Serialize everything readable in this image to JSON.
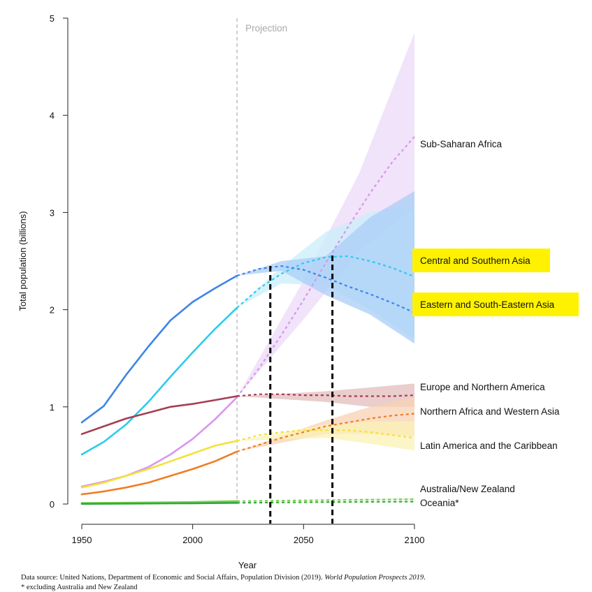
{
  "chart_data": {
    "type": "line",
    "xlabel": "Year",
    "ylabel": "Total population (billions)",
    "xlim": [
      1950,
      2100
    ],
    "ylim": [
      0,
      5
    ],
    "x_ticks": [
      "1950",
      "2000",
      "2050",
      "2100"
    ],
    "y_ticks": [
      "0",
      "1",
      "2",
      "3",
      "4",
      "5"
    ],
    "projection_label": "Projection",
    "projection_start": 2020,
    "marker_years": [
      2035,
      2063
    ],
    "series": [
      {
        "name": "Sub-Saharan Africa",
        "color": "#d896ee",
        "band_color": "#ecd9f7",
        "history": [
          [
            1950,
            0.18
          ],
          [
            1960,
            0.23
          ],
          [
            1970,
            0.29
          ],
          [
            1980,
            0.38
          ],
          [
            1990,
            0.51
          ],
          [
            2000,
            0.67
          ],
          [
            2010,
            0.87
          ],
          [
            2020,
            1.1
          ]
        ],
        "projection": [
          [
            2020,
            1.1
          ],
          [
            2030,
            1.4
          ],
          [
            2040,
            1.74
          ],
          [
            2050,
            2.1
          ],
          [
            2060,
            2.48
          ],
          [
            2070,
            2.85
          ],
          [
            2080,
            3.2
          ],
          [
            2090,
            3.52
          ],
          [
            2100,
            3.78
          ]
        ],
        "band_lower": [
          [
            2020,
            1.1
          ],
          [
            2050,
            1.9
          ],
          [
            2075,
            2.6
          ],
          [
            2100,
            3.05
          ]
        ],
        "band_upper": [
          [
            2020,
            1.1
          ],
          [
            2050,
            2.3
          ],
          [
            2075,
            3.4
          ],
          [
            2100,
            4.85
          ]
        ]
      },
      {
        "name": "Central and Southern Asia",
        "color": "#2ccbef",
        "band_color": "#c9eef9",
        "highlight": "#fff200",
        "history": [
          [
            1950,
            0.51
          ],
          [
            1960,
            0.64
          ],
          [
            1970,
            0.82
          ],
          [
            1980,
            1.05
          ],
          [
            1990,
            1.31
          ],
          [
            2000,
            1.56
          ],
          [
            2010,
            1.8
          ],
          [
            2020,
            2.02
          ]
        ],
        "projection": [
          [
            2020,
            2.02
          ],
          [
            2030,
            2.22
          ],
          [
            2040,
            2.37
          ],
          [
            2050,
            2.48
          ],
          [
            2060,
            2.54
          ],
          [
            2070,
            2.55
          ],
          [
            2080,
            2.5
          ],
          [
            2090,
            2.43
          ],
          [
            2100,
            2.34
          ]
        ],
        "band_lower": [
          [
            2020,
            2.02
          ],
          [
            2040,
            2.27
          ],
          [
            2060,
            2.25
          ],
          [
            2080,
            2.0
          ],
          [
            2100,
            1.7
          ]
        ],
        "band_upper": [
          [
            2020,
            2.02
          ],
          [
            2040,
            2.44
          ],
          [
            2060,
            2.8
          ],
          [
            2080,
            3.0
          ],
          [
            2100,
            3.08
          ]
        ]
      },
      {
        "name": "Eastern and South-Eastern Asia",
        "color": "#3d85e8",
        "band_color": "#a9cdf7",
        "highlight": "#fff200",
        "history": [
          [
            1950,
            0.84
          ],
          [
            1960,
            1.01
          ],
          [
            1970,
            1.33
          ],
          [
            1980,
            1.62
          ],
          [
            1990,
            1.89
          ],
          [
            2000,
            2.08
          ],
          [
            2010,
            2.22
          ],
          [
            2020,
            2.35
          ]
        ],
        "projection": [
          [
            2020,
            2.35
          ],
          [
            2030,
            2.42
          ],
          [
            2040,
            2.45
          ],
          [
            2050,
            2.41
          ],
          [
            2060,
            2.33
          ],
          [
            2070,
            2.24
          ],
          [
            2080,
            2.16
          ],
          [
            2090,
            2.07
          ],
          [
            2100,
            1.97
          ]
        ],
        "band_lower": [
          [
            2020,
            2.35
          ],
          [
            2040,
            2.4
          ],
          [
            2060,
            2.15
          ],
          [
            2080,
            1.95
          ],
          [
            2100,
            1.65
          ]
        ],
        "band_upper": [
          [
            2020,
            2.35
          ],
          [
            2040,
            2.5
          ],
          [
            2060,
            2.55
          ],
          [
            2080,
            2.95
          ],
          [
            2100,
            3.22
          ]
        ]
      },
      {
        "name": "Europe and Northern America",
        "color": "#a83d52",
        "band_color": "#e3bcbc",
        "history": [
          [
            1950,
            0.72
          ],
          [
            1960,
            0.8
          ],
          [
            1970,
            0.88
          ],
          [
            1980,
            0.94
          ],
          [
            1990,
            1.0
          ],
          [
            2000,
            1.03
          ],
          [
            2010,
            1.07
          ],
          [
            2020,
            1.11
          ]
        ],
        "projection": [
          [
            2020,
            1.11
          ],
          [
            2030,
            1.13
          ],
          [
            2040,
            1.13
          ],
          [
            2050,
            1.12
          ],
          [
            2060,
            1.12
          ],
          [
            2070,
            1.11
          ],
          [
            2080,
            1.11
          ],
          [
            2090,
            1.11
          ],
          [
            2100,
            1.12
          ]
        ],
        "band_lower": [
          [
            2020,
            1.11
          ],
          [
            2060,
            1.05
          ],
          [
            2080,
            1.0
          ],
          [
            2100,
            1.0
          ]
        ],
        "band_upper": [
          [
            2020,
            1.11
          ],
          [
            2060,
            1.16
          ],
          [
            2080,
            1.2
          ],
          [
            2100,
            1.24
          ]
        ]
      },
      {
        "name": "Northern Africa and Western Asia",
        "color": "#f07d23",
        "band_color": "#f8d2b3",
        "history": [
          [
            1950,
            0.1
          ],
          [
            1960,
            0.13
          ],
          [
            1970,
            0.17
          ],
          [
            1980,
            0.22
          ],
          [
            1990,
            0.29
          ],
          [
            2000,
            0.36
          ],
          [
            2010,
            0.44
          ],
          [
            2020,
            0.54
          ]
        ],
        "projection": [
          [
            2020,
            0.54
          ],
          [
            2030,
            0.61
          ],
          [
            2040,
            0.68
          ],
          [
            2050,
            0.74
          ],
          [
            2060,
            0.8
          ],
          [
            2070,
            0.84
          ],
          [
            2080,
            0.88
          ],
          [
            2090,
            0.91
          ],
          [
            2100,
            0.93
          ]
        ],
        "band_lower": [
          [
            2020,
            0.54
          ],
          [
            2060,
            0.72
          ],
          [
            2080,
            0.72
          ],
          [
            2100,
            0.7
          ]
        ],
        "band_upper": [
          [
            2020,
            0.54
          ],
          [
            2060,
            0.86
          ],
          [
            2080,
            1.0
          ],
          [
            2100,
            1.1
          ]
        ]
      },
      {
        "name": "Latin America and the Caribbean",
        "color": "#f5e03a",
        "band_color": "#fbf2b5",
        "history": [
          [
            1950,
            0.17
          ],
          [
            1960,
            0.22
          ],
          [
            1970,
            0.29
          ],
          [
            1980,
            0.36
          ],
          [
            1990,
            0.44
          ],
          [
            2000,
            0.52
          ],
          [
            2010,
            0.6
          ],
          [
            2020,
            0.65
          ]
        ],
        "projection": [
          [
            2020,
            0.65
          ],
          [
            2030,
            0.71
          ],
          [
            2040,
            0.74
          ],
          [
            2050,
            0.76
          ],
          [
            2060,
            0.76
          ],
          [
            2070,
            0.76
          ],
          [
            2080,
            0.74
          ],
          [
            2090,
            0.71
          ],
          [
            2100,
            0.68
          ]
        ],
        "band_lower": [
          [
            2020,
            0.65
          ],
          [
            2060,
            0.68
          ],
          [
            2080,
            0.62
          ],
          [
            2100,
            0.55
          ]
        ],
        "band_upper": [
          [
            2020,
            0.65
          ],
          [
            2060,
            0.82
          ],
          [
            2080,
            0.85
          ],
          [
            2100,
            0.85
          ]
        ]
      },
      {
        "name": "Australia/New Zealand",
        "color": "#7ccf4a",
        "band_color": "#d6f0c4",
        "history": [
          [
            1950,
            0.01
          ],
          [
            2000,
            0.02
          ],
          [
            2020,
            0.03
          ]
        ],
        "projection": [
          [
            2020,
            0.03
          ],
          [
            2060,
            0.04
          ],
          [
            2100,
            0.05
          ]
        ],
        "band_lower": [
          [
            2020,
            0.03
          ],
          [
            2100,
            0.04
          ]
        ],
        "band_upper": [
          [
            2020,
            0.03
          ],
          [
            2100,
            0.06
          ]
        ]
      },
      {
        "name": "Oceania*",
        "color": "#2eaa3e",
        "band_color": "#c8ecc8",
        "history": [
          [
            1950,
            0.002
          ],
          [
            2000,
            0.008
          ],
          [
            2020,
            0.012
          ]
        ],
        "projection": [
          [
            2020,
            0.012
          ],
          [
            2060,
            0.02
          ],
          [
            2100,
            0.025
          ]
        ],
        "band_lower": [
          [
            2020,
            0.012
          ],
          [
            2100,
            0.02
          ]
        ],
        "band_upper": [
          [
            2020,
            0.012
          ],
          [
            2100,
            0.03
          ]
        ]
      }
    ]
  },
  "footnotes": {
    "source_prefix": "Data source: United Nations, Department of Economic and Social Affairs, Population Division (2019). ",
    "source_title": "World Population Prospects 2019",
    "source_suffix": ".",
    "excluding": "* excluding Australia and New Zealand"
  }
}
